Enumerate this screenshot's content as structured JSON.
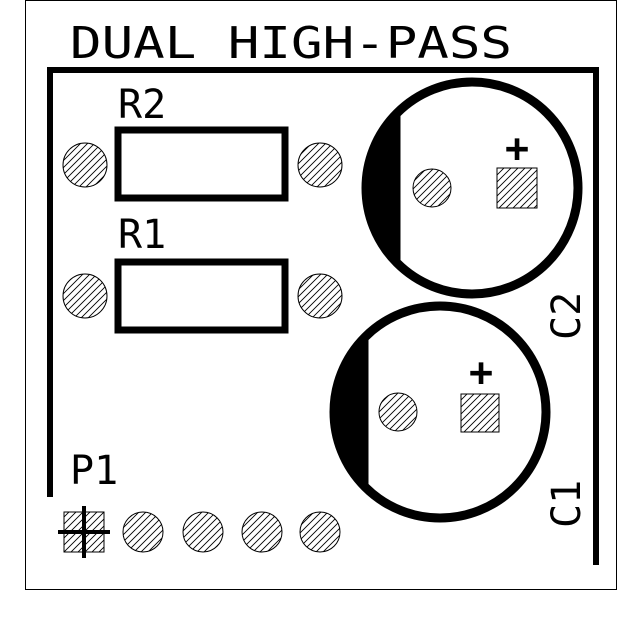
{
  "board": {
    "title": "DUAL HIGH-PASS",
    "background": "#ffffff",
    "silkscreen_color": "#000000",
    "pad_hatch": "diagonal-hatch"
  },
  "components": {
    "r2": {
      "label": "R2"
    },
    "r1": {
      "label": "R1"
    },
    "c2": {
      "label": "C2",
      "polarity_mark": "+"
    },
    "c1": {
      "label": "C1",
      "polarity_mark": "+"
    },
    "p1": {
      "label": "P1",
      "pin_count": 5
    }
  }
}
